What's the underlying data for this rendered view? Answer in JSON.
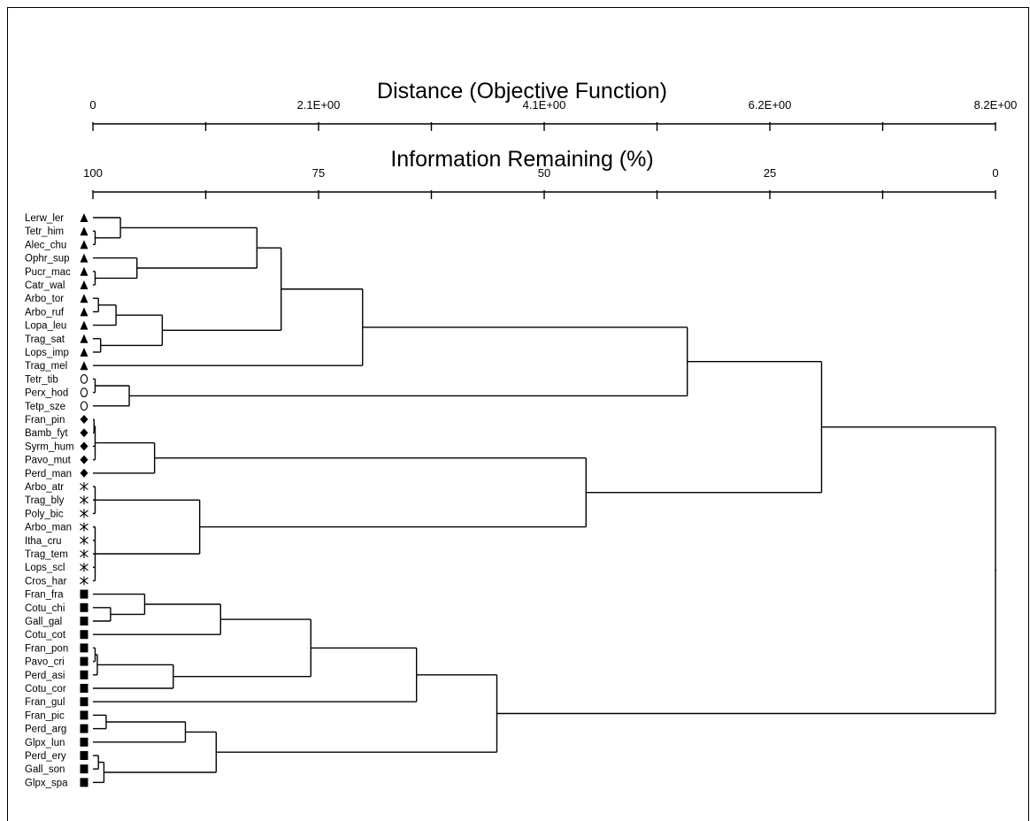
{
  "chart_data": {
    "type": "dendrogram",
    "top_axis": {
      "title": "Distance (Objective Function)",
      "tick_labels": [
        "0",
        "2.1E+00",
        "4.1E+00",
        "6.2E+00",
        "8.2E+00"
      ],
      "range": [
        0,
        8.2
      ]
    },
    "bottom_axis": {
      "title": "Information Remaining (%)",
      "tick_labels": [
        "100",
        "75",
        "50",
        "25",
        "0"
      ],
      "range": [
        100,
        0
      ]
    },
    "leaves": [
      {
        "label": "Lerw_ler",
        "symbol": "triangle"
      },
      {
        "label": "Tetr_him",
        "symbol": "triangle"
      },
      {
        "label": "Alec_chu",
        "symbol": "triangle"
      },
      {
        "label": "Ophr_sup",
        "symbol": "triangle"
      },
      {
        "label": "Pucr_mac",
        "symbol": "triangle"
      },
      {
        "label": "Catr_wal",
        "symbol": "triangle"
      },
      {
        "label": "Arbo_tor",
        "symbol": "triangle"
      },
      {
        "label": "Arbo_ruf",
        "symbol": "triangle"
      },
      {
        "label": "Lopa_leu",
        "symbol": "triangle"
      },
      {
        "label": "Trag_sat",
        "symbol": "triangle"
      },
      {
        "label": "Lops_imp",
        "symbol": "triangle"
      },
      {
        "label": "Trag_mel",
        "symbol": "triangle"
      },
      {
        "label": "Tetr_tib",
        "symbol": "circle"
      },
      {
        "label": "Perx_hod",
        "symbol": "circle"
      },
      {
        "label": "Tetp_sze",
        "symbol": "circle"
      },
      {
        "label": "Fran_pin",
        "symbol": "diamond"
      },
      {
        "label": "Bamb_fyt",
        "symbol": "diamond"
      },
      {
        "label": "Syrm_hum",
        "symbol": "diamond"
      },
      {
        "label": "Pavo_mut",
        "symbol": "diamond"
      },
      {
        "label": "Perd_man",
        "symbol": "diamond"
      },
      {
        "label": "Arbo_atr",
        "symbol": "asterisk"
      },
      {
        "label": "Trag_bly",
        "symbol": "asterisk"
      },
      {
        "label": "Poly_bic",
        "symbol": "asterisk"
      },
      {
        "label": "Arbo_man",
        "symbol": "asterisk"
      },
      {
        "label": "Itha_cru",
        "symbol": "asterisk"
      },
      {
        "label": "Trag_tem",
        "symbol": "asterisk"
      },
      {
        "label": "Lops_scl",
        "symbol": "asterisk"
      },
      {
        "label": "Cros_har",
        "symbol": "asterisk"
      },
      {
        "label": "Fran_fra",
        "symbol": "square"
      },
      {
        "label": "Cotu_chi",
        "symbol": "square"
      },
      {
        "label": "Gall_gal",
        "symbol": "square"
      },
      {
        "label": "Cotu_cot",
        "symbol": "square"
      },
      {
        "label": "Fran_pon",
        "symbol": "square"
      },
      {
        "label": "Pavo_cri",
        "symbol": "square"
      },
      {
        "label": "Perd_asi",
        "symbol": "square"
      },
      {
        "label": "Cotu_cor",
        "symbol": "square"
      },
      {
        "label": "Fran_gul",
        "symbol": "square"
      },
      {
        "label": "Fran_pic",
        "symbol": "square"
      },
      {
        "label": "Perd_arg",
        "symbol": "square"
      },
      {
        "label": "Glpx_lun",
        "symbol": "square"
      },
      {
        "label": "Perd_ery",
        "symbol": "square"
      },
      {
        "label": "Gall_son",
        "symbol": "square"
      },
      {
        "label": "Glpx_spa",
        "symbol": "square"
      }
    ],
    "tree": {
      "h": 8.2,
      "c": [
        {
          "h": 6.62,
          "c": [
            {
              "h": 5.4,
              "c": [
                {
                  "h": 2.45,
                  "c": [
                    {
                      "h": 1.71,
                      "c": [
                        {
                          "h": 1.49,
                          "c": [
                            {
                              "h": 0.25,
                              "c": [
                                0,
                                {
                                  "h": 0.02,
                                  "c": [
                                    1,
                                    2
                                  ]
                                }
                              ]
                            },
                            {
                              "h": 0.4,
                              "c": [
                                3,
                                {
                                  "h": 0.02,
                                  "c": [
                                    4,
                                    5
                                  ]
                                }
                              ]
                            }
                          ]
                        },
                        {
                          "h": 0.63,
                          "c": [
                            {
                              "h": 0.21,
                              "c": [
                                {
                                  "h": 0.05,
                                  "c": [
                                    6,
                                    7
                                  ]
                                },
                                8
                              ]
                            },
                            {
                              "h": 0.07,
                              "c": [
                                9,
                                10
                              ]
                            }
                          ]
                        }
                      ]
                    },
                    11
                  ]
                },
                {
                  "h": 0.33,
                  "c": [
                    {
                      "h": 0.02,
                      "c": [
                        12,
                        13
                      ]
                    },
                    14
                  ]
                }
              ]
            },
            {
              "h": 4.48,
              "c": [
                {
                  "h": 0.56,
                  "c": [
                    {
                      "h": 0.02,
                      "c": [
                        {
                          "h": 0.01,
                          "c": [
                            15,
                            16
                          ]
                        },
                        17,
                        18
                      ]
                    },
                    19
                  ]
                },
                {
                  "h": 0.97,
                  "c": [
                    {
                      "h": 0.02,
                      "c": [
                        20,
                        21,
                        22
                      ]
                    },
                    {
                      "h": 0.02,
                      "c": [
                        23,
                        24,
                        25,
                        26,
                        27
                      ]
                    }
                  ]
                }
              ]
            }
          ]
        },
        {
          "h": 3.67,
          "c": [
            {
              "h": 2.94,
              "c": [
                {
                  "h": 1.98,
                  "c": [
                    {
                      "h": 1.16,
                      "c": [
                        {
                          "h": 0.47,
                          "c": [
                            28,
                            {
                              "h": 0.16,
                              "c": [
                                29,
                                30
                              ]
                            }
                          ]
                        },
                        31
                      ]
                    },
                    {
                      "h": 0.73,
                      "c": [
                        {
                          "h": 0.04,
                          "c": [
                            {
                              "h": 0.02,
                              "c": [
                                32,
                                33
                              ]
                            },
                            34
                          ]
                        },
                        35
                      ]
                    }
                  ]
                },
                36
              ]
            },
            {
              "h": 1.12,
              "c": [
                {
                  "h": 0.84,
                  "c": [
                    {
                      "h": 0.12,
                      "c": [
                        37,
                        38
                      ]
                    },
                    39
                  ]
                },
                {
                  "h": 0.1,
                  "c": [
                    {
                      "h": 0.05,
                      "c": [
                        40,
                        41
                      ]
                    },
                    42
                  ]
                }
              ]
            }
          ]
        }
      ]
    }
  }
}
